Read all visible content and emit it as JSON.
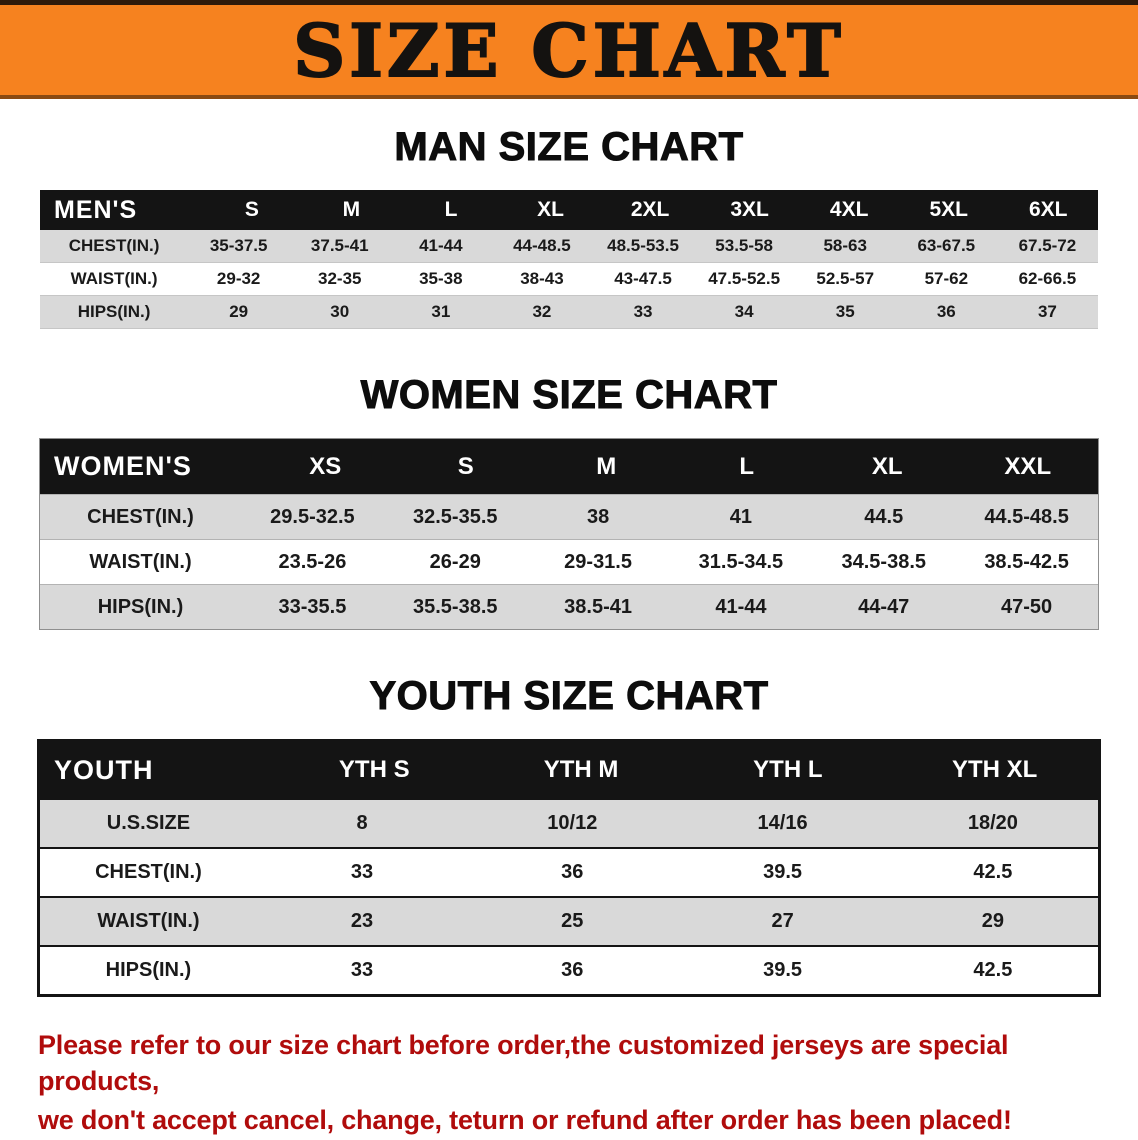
{
  "banner": {
    "title": "SIZE CHART",
    "bg_color": "#f6821f"
  },
  "sections": [
    {
      "heading": "MAN SIZE CHART",
      "table": {
        "header": [
          "MEN'S",
          "S",
          "M",
          "L",
          "XL",
          "2XL",
          "3XL",
          "4XL",
          "5XL",
          "6XL"
        ],
        "rows": [
          [
            "CHEST(IN.)",
            "35-37.5",
            "37.5-41",
            "41-44",
            "44-48.5",
            "48.5-53.5",
            "53.5-58",
            "58-63",
            "63-67.5",
            "67.5-72"
          ],
          [
            "WAIST(IN.)",
            "29-32",
            "32-35",
            "35-38",
            "38-43",
            "43-47.5",
            "47.5-52.5",
            "52.5-57",
            "57-62",
            "62-66.5"
          ],
          [
            "HIPS(IN.)",
            "29",
            "30",
            "31",
            "32",
            "33",
            "34",
            "35",
            "36",
            "37"
          ]
        ]
      }
    },
    {
      "heading": "WOMEN SIZE CHART",
      "table": {
        "header": [
          "WOMEN'S",
          "XS",
          "S",
          "M",
          "L",
          "XL",
          "XXL"
        ],
        "rows": [
          [
            "CHEST(IN.)",
            "29.5-32.5",
            "32.5-35.5",
            "38",
            "41",
            "44.5",
            "44.5-48.5"
          ],
          [
            "WAIST(IN.)",
            "23.5-26",
            "26-29",
            "29-31.5",
            "31.5-34.5",
            "34.5-38.5",
            "38.5-42.5"
          ],
          [
            "HIPS(IN.)",
            "33-35.5",
            "35.5-38.5",
            "38.5-41",
            "41-44",
            "44-47",
            "47-50"
          ]
        ]
      }
    },
    {
      "heading": "YOUTH SIZE CHART",
      "table": {
        "header": [
          "YOUTH",
          "YTH S",
          "YTH M",
          "YTH L",
          "YTH XL"
        ],
        "rows": [
          [
            "U.S.SIZE",
            "8",
            "10/12",
            "14/16",
            "18/20"
          ],
          [
            "CHEST(IN.)",
            "33",
            "36",
            "39.5",
            "42.5"
          ],
          [
            "WAIST(IN.)",
            "23",
            "25",
            "27",
            "29"
          ],
          [
            "HIPS(IN.)",
            "33",
            "36",
            "39.5",
            "42.5"
          ]
        ]
      }
    }
  ],
  "footer": {
    "color": "#b00c0c",
    "lines": [
      "Please refer to our size chart before order,the customized jerseys are special products,",
      "we don't accept cancel, change, teturn or refund after order has been placed!"
    ]
  }
}
